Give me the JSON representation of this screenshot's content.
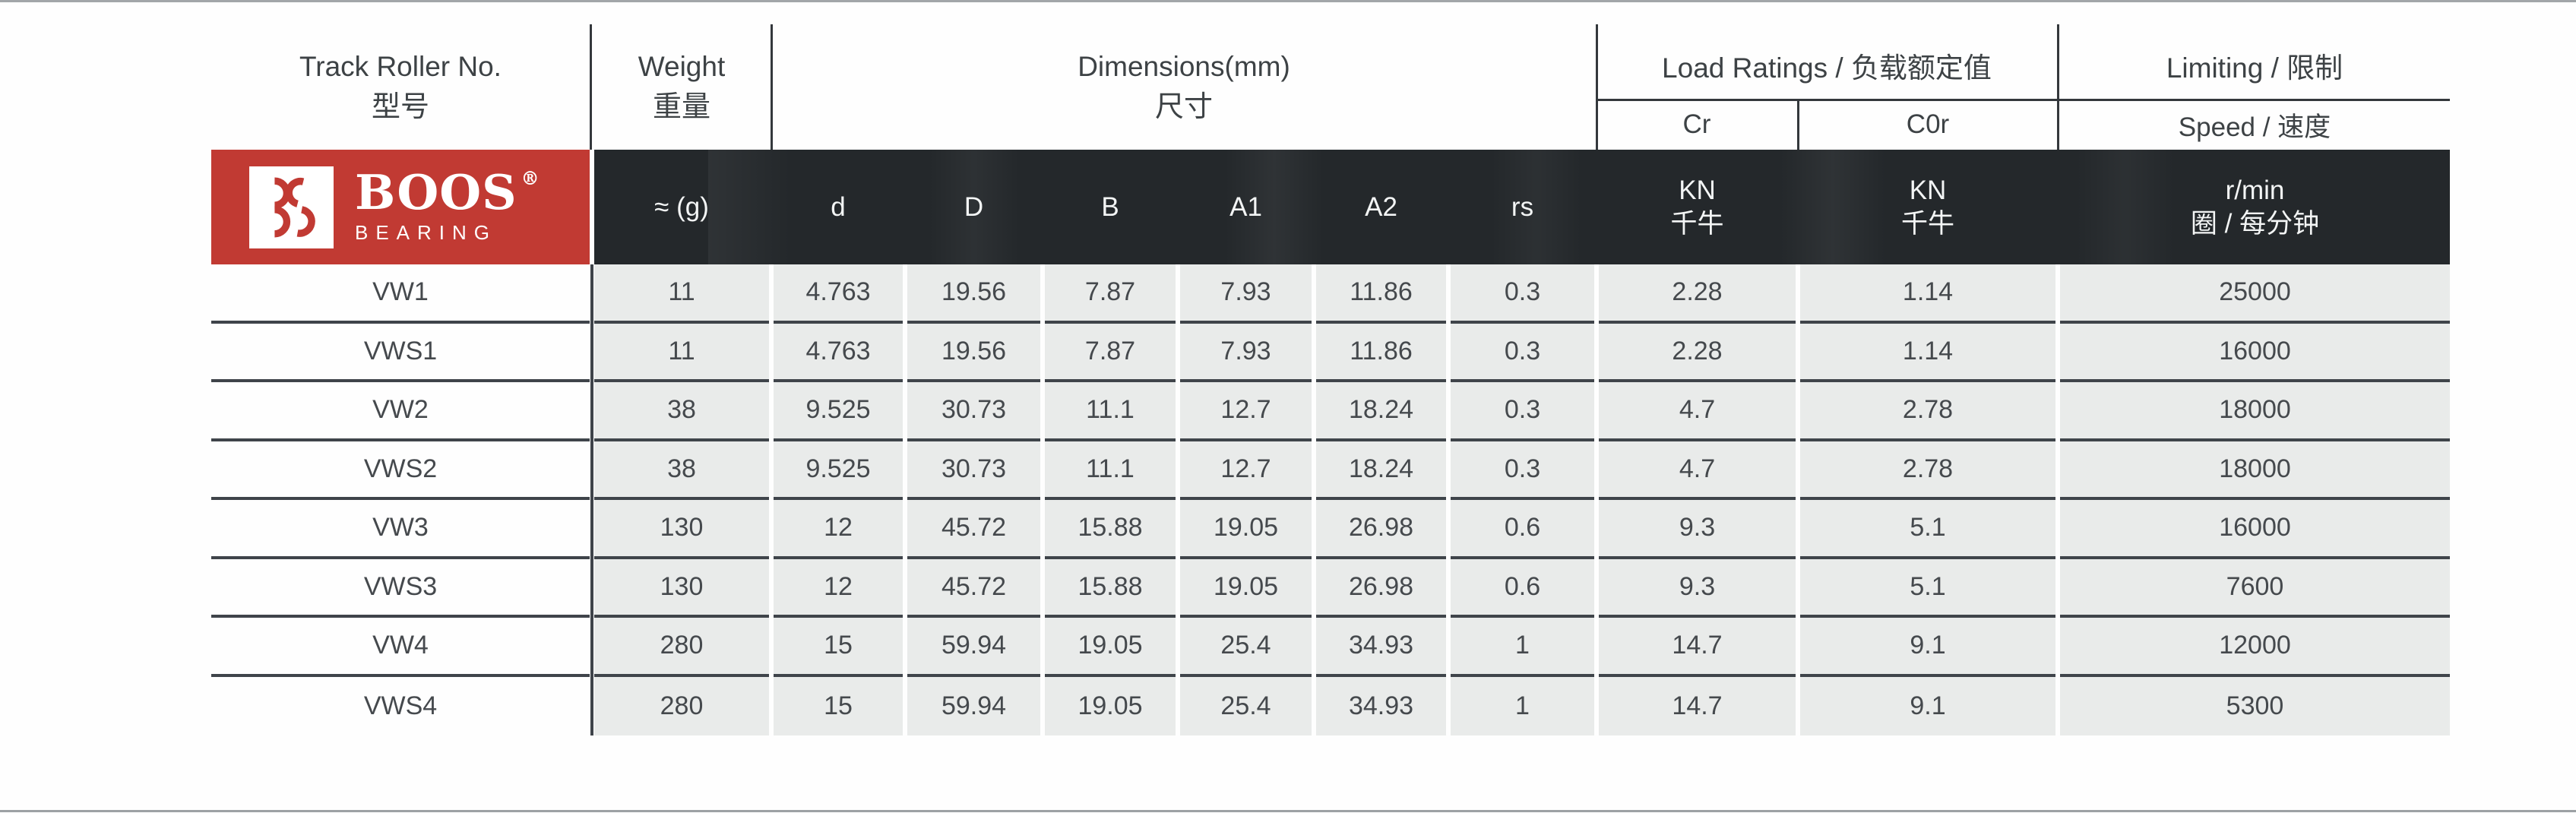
{
  "colors": {
    "brand_red": "#c13a33",
    "header_dark": "#24282b",
    "row_gray": "#e9ebea",
    "line_dark": "#3f444a",
    "edge_gray": "#a2a6a9"
  },
  "logo": {
    "brand": "BOOS",
    "registered": "®",
    "subtitle": "BEARING",
    "mark_icon": "bs-arcs-monogram"
  },
  "header": {
    "track": {
      "line1": "Track Roller No.",
      "line2": "型号"
    },
    "weight": {
      "line1": "Weight",
      "line2": "重量"
    },
    "dimensions": {
      "line1": "Dimensions(mm)",
      "line2": "尺寸"
    },
    "load_ratings": {
      "title": "Load Ratings / 负载额定值",
      "sub_cr": "Cr",
      "sub_c0r": "C0r"
    },
    "limiting": {
      "title": "Limiting / 限制",
      "sub_speed": "Speed / 速度"
    }
  },
  "units": {
    "weight": "≈ (g)",
    "dims": [
      "d",
      "D",
      "B",
      "A1",
      "A2",
      "rs"
    ],
    "cr_line1": "KN",
    "cr_line2": "千牛",
    "c0r_line1": "KN",
    "c0r_line2": "千牛",
    "speed_line1": "r/min",
    "speed_line2": "圈 / 每分钟"
  },
  "row_order": [
    "model",
    "weight",
    "d",
    "D",
    "B",
    "A1",
    "A2",
    "rs",
    "cr",
    "c0r",
    "speed"
  ],
  "rows": [
    {
      "model": "VW1",
      "weight": "11",
      "d": "4.763",
      "D": "19.56",
      "B": "7.87",
      "A1": "7.93",
      "A2": "11.86",
      "rs": "0.3",
      "cr": "2.28",
      "c0r": "1.14",
      "speed": "25000"
    },
    {
      "model": "VWS1",
      "weight": "11",
      "d": "4.763",
      "D": "19.56",
      "B": "7.87",
      "A1": "7.93",
      "A2": "11.86",
      "rs": "0.3",
      "cr": "2.28",
      "c0r": "1.14",
      "speed": "16000"
    },
    {
      "model": "VW2",
      "weight": "38",
      "d": "9.525",
      "D": "30.73",
      "B": "11.1",
      "A1": "12.7",
      "A2": "18.24",
      "rs": "0.3",
      "cr": "4.7",
      "c0r": "2.78",
      "speed": "18000"
    },
    {
      "model": "VWS2",
      "weight": "38",
      "d": "9.525",
      "D": "30.73",
      "B": "11.1",
      "A1": "12.7",
      "A2": "18.24",
      "rs": "0.3",
      "cr": "4.7",
      "c0r": "2.78",
      "speed": "18000"
    },
    {
      "model": "VW3",
      "weight": "130",
      "d": "12",
      "D": "45.72",
      "B": "15.88",
      "A1": "19.05",
      "A2": "26.98",
      "rs": "0.6",
      "cr": "9.3",
      "c0r": "5.1",
      "speed": "16000"
    },
    {
      "model": "VWS3",
      "weight": "130",
      "d": "12",
      "D": "45.72",
      "B": "15.88",
      "A1": "19.05",
      "A2": "26.98",
      "rs": "0.6",
      "cr": "9.3",
      "c0r": "5.1",
      "speed": "7600"
    },
    {
      "model": "VW4",
      "weight": "280",
      "d": "15",
      "D": "59.94",
      "B": "19.05",
      "A1": "25.4",
      "A2": "34.93",
      "rs": "1",
      "cr": "14.7",
      "c0r": "9.1",
      "speed": "12000"
    },
    {
      "model": "VWS4",
      "weight": "280",
      "d": "15",
      "D": "59.94",
      "B": "19.05",
      "A1": "25.4",
      "A2": "34.93",
      "rs": "1",
      "cr": "14.7",
      "c0r": "9.1",
      "speed": "5300"
    }
  ]
}
